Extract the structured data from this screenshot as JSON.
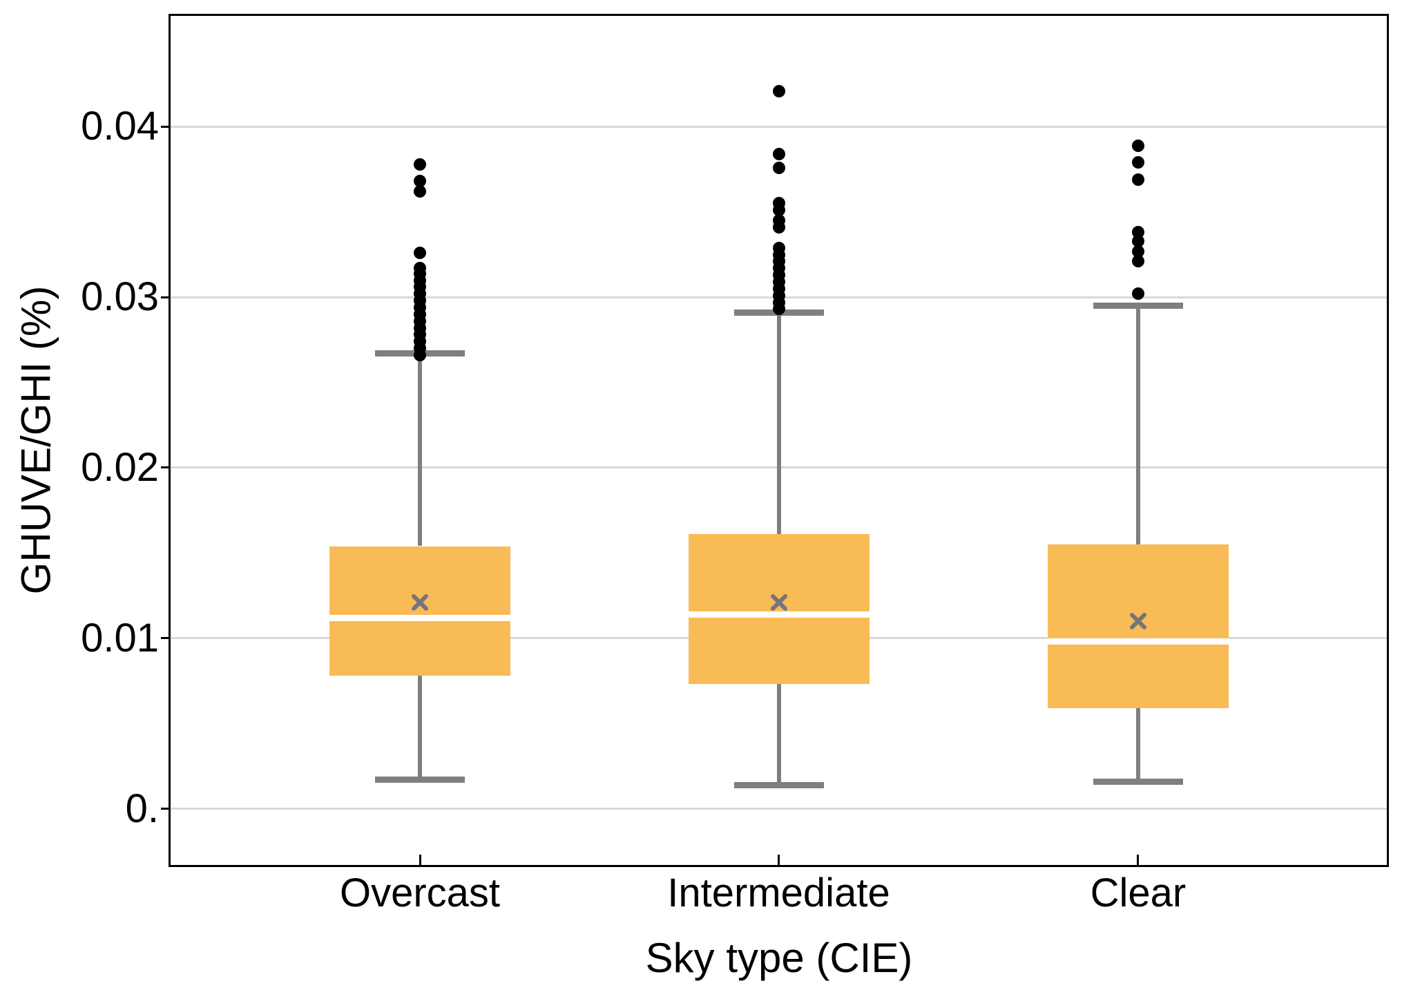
{
  "chart_data": {
    "type": "box",
    "title": "",
    "xlabel": "Sky type (CIE)",
    "ylabel": "GHUVE/GHI (%)",
    "categories": [
      "Overcast",
      "Intermediate",
      "Clear"
    ],
    "ylim": [
      -0.0033,
      0.0465
    ],
    "grid": "horizontal-only",
    "legend": "none",
    "yticks": [
      {
        "value": 0,
        "label": "0."
      },
      {
        "value": 0.01,
        "label": "0.01"
      },
      {
        "value": 0.02,
        "label": "0.02"
      },
      {
        "value": 0.03,
        "label": "0.03"
      },
      {
        "value": 0.04,
        "label": "0.04"
      }
    ],
    "series": [
      {
        "name": "Overcast",
        "whisker_low": 0.0017,
        "q1": 0.0078,
        "median": 0.0112,
        "mean": 0.0121,
        "q3": 0.0154,
        "whisker_high": 0.0267,
        "outliers": [
          0.0378,
          0.0368,
          0.0362,
          0.0326,
          0.0317,
          0.0314,
          0.031,
          0.0306,
          0.0302,
          0.0298,
          0.0294,
          0.029,
          0.0286,
          0.0282,
          0.0278,
          0.0274,
          0.027,
          0.0266
        ]
      },
      {
        "name": "Intermediate",
        "whisker_low": 0.0014,
        "q1": 0.0073,
        "median": 0.0114,
        "mean": 0.0121,
        "q3": 0.0161,
        "whisker_high": 0.0291,
        "outliers": [
          0.0421,
          0.0384,
          0.0376,
          0.0355,
          0.0351,
          0.0345,
          0.0341,
          0.0329,
          0.0325,
          0.0321,
          0.0317,
          0.0313,
          0.0309,
          0.0305,
          0.0301,
          0.0297,
          0.0293
        ]
      },
      {
        "name": "Clear",
        "whisker_low": 0.0016,
        "q1": 0.0059,
        "median": 0.0098,
        "mean": 0.011,
        "q3": 0.0155,
        "whisker_high": 0.0295,
        "outliers": [
          0.0389,
          0.0379,
          0.0369,
          0.0338,
          0.0333,
          0.0327,
          0.0321,
          0.0302
        ]
      }
    ],
    "colors": {
      "box_fill": "#f8bb55",
      "whisker": "#7f7f7f",
      "median_line": "#ffffff",
      "mean_marker": "#75757d",
      "outlier": "#000000",
      "gridline": "#d9d9d9",
      "axis": "#000000",
      "background": "#ffffff"
    }
  }
}
